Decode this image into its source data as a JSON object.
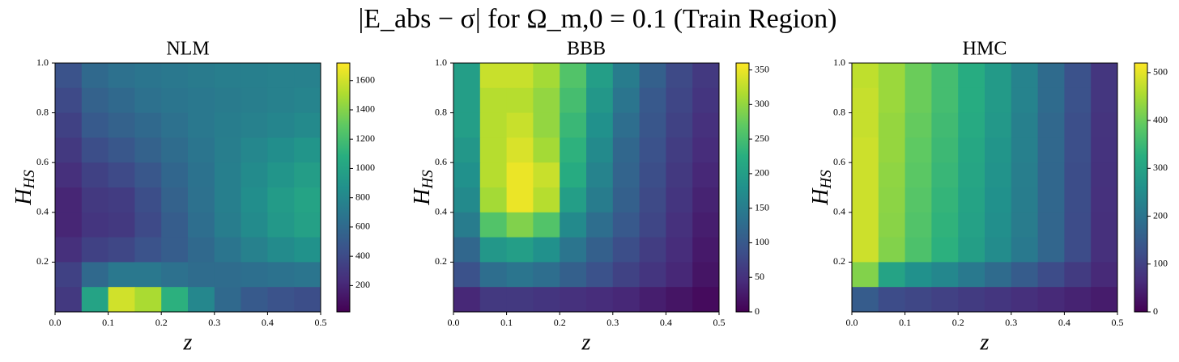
{
  "title": "|E_abs − σ| for Ω_m,0 = 0.1 (Train Region)",
  "chart_data": [
    {
      "type": "heatmap",
      "title": "NLM",
      "xlabel": "z",
      "ylabel": "H",
      "ylabel_sub": "HS",
      "colormap": "viridis",
      "xlim": [
        0,
        0.5
      ],
      "ylim": [
        0,
        1
      ],
      "xticks": [
        {
          "value": 0,
          "label": "0.0"
        },
        0.1,
        0.2,
        0.3,
        0.4,
        0.5
      ],
      "yticks": [
        0.2,
        0.4,
        0.6,
        0.8,
        {
          "value": 1,
          "label": "1.0"
        }
      ],
      "clim": [
        20,
        1720
      ],
      "cticks": [
        200,
        400,
        600,
        800,
        1000,
        1200,
        1400,
        1600
      ],
      "x": [
        0.025,
        0.075,
        0.125,
        0.175,
        0.225,
        0.275,
        0.325,
        0.375,
        0.425,
        0.475
      ],
      "y": [
        0.95,
        0.85,
        0.75,
        0.65,
        0.55,
        0.45,
        0.35,
        0.25,
        0.15,
        0.05
      ],
      "values": [
        [
          450,
          600,
          650,
          680,
          700,
          720,
          740,
          750,
          760,
          760
        ],
        [
          400,
          550,
          600,
          650,
          680,
          700,
          720,
          740,
          760,
          780
        ],
        [
          350,
          500,
          550,
          600,
          650,
          700,
          730,
          760,
          790,
          820
        ],
        [
          300,
          420,
          480,
          550,
          620,
          680,
          740,
          800,
          850,
          900
        ],
        [
          250,
          350,
          400,
          480,
          580,
          660,
          750,
          830,
          900,
          960
        ],
        [
          200,
          300,
          320,
          420,
          550,
          650,
          750,
          850,
          940,
          1000
        ],
        [
          200,
          280,
          300,
          400,
          520,
          630,
          730,
          830,
          920,
          980
        ],
        [
          250,
          350,
          380,
          450,
          520,
          600,
          680,
          760,
          830,
          880
        ],
        [
          350,
          600,
          700,
          700,
          650,
          620,
          620,
          640,
          660,
          680
        ],
        [
          300,
          1000,
          1600,
          1500,
          1100,
          800,
          600,
          500,
          450,
          420
        ]
      ]
    },
    {
      "type": "heatmap",
      "title": "BBB",
      "xlabel": "z",
      "ylabel": "H",
      "ylabel_sub": "HS",
      "colormap": "viridis",
      "xlim": [
        0,
        0.5
      ],
      "ylim": [
        0,
        1
      ],
      "xticks": [
        {
          "value": 0,
          "label": "0.0"
        },
        0.1,
        0.2,
        0.3,
        0.4,
        0.5
      ],
      "yticks": [
        0.2,
        0.4,
        0.6,
        0.8,
        {
          "value": 1,
          "label": "1.0"
        }
      ],
      "clim": [
        0,
        360
      ],
      "cticks": [
        0,
        50,
        100,
        150,
        200,
        250,
        300,
        350
      ],
      "x": [
        0.025,
        0.075,
        0.125,
        0.175,
        0.225,
        0.275,
        0.325,
        0.375,
        0.425,
        0.475
      ],
      "y": [
        0.95,
        0.85,
        0.75,
        0.65,
        0.55,
        0.45,
        0.35,
        0.25,
        0.15,
        0.05
      ],
      "values": [
        [
          200,
          330,
          330,
          310,
          260,
          200,
          150,
          110,
          80,
          60
        ],
        [
          200,
          320,
          320,
          300,
          250,
          190,
          140,
          100,
          75,
          55
        ],
        [
          200,
          320,
          330,
          300,
          240,
          180,
          130,
          95,
          70,
          50
        ],
        [
          190,
          320,
          340,
          310,
          230,
          170,
          120,
          90,
          65,
          45
        ],
        [
          180,
          320,
          350,
          330,
          220,
          160,
          115,
          85,
          60,
          40
        ],
        [
          170,
          310,
          350,
          320,
          200,
          150,
          110,
          80,
          55,
          35
        ],
        [
          150,
          260,
          290,
          260,
          170,
          130,
          100,
          75,
          50,
          30
        ],
        [
          120,
          190,
          200,
          180,
          140,
          110,
          85,
          65,
          45,
          25
        ],
        [
          90,
          130,
          140,
          130,
          110,
          90,
          70,
          55,
          40,
          20
        ],
        [
          40,
          60,
          60,
          55,
          50,
          45,
          40,
          30,
          20,
          10
        ]
      ]
    },
    {
      "type": "heatmap",
      "title": "HMC",
      "xlabel": "z",
      "ylabel": "H",
      "ylabel_sub": "HS",
      "colormap": "viridis",
      "xlim": [
        0,
        0.5
      ],
      "ylim": [
        0,
        1
      ],
      "xticks": [
        {
          "value": 0,
          "label": "0.0"
        },
        0.1,
        0.2,
        0.3,
        0.4,
        0.5
      ],
      "yticks": [
        0.2,
        0.4,
        0.6,
        0.8,
        {
          "value": 1,
          "label": "1.0"
        }
      ],
      "clim": [
        0,
        520
      ],
      "cticks": [
        0,
        100,
        200,
        300,
        400,
        500
      ],
      "x": [
        0.025,
        0.075,
        0.125,
        0.175,
        0.225,
        0.275,
        0.325,
        0.375,
        0.425,
        0.475
      ],
      "y": [
        0.95,
        0.85,
        0.75,
        0.65,
        0.55,
        0.45,
        0.35,
        0.25,
        0.15,
        0.05
      ],
      "values": [
        [
          470,
          440,
          400,
          360,
          320,
          280,
          230,
          180,
          130,
          80
        ],
        [
          475,
          440,
          400,
          360,
          320,
          280,
          230,
          180,
          130,
          80
        ],
        [
          475,
          435,
          395,
          355,
          315,
          275,
          225,
          175,
          125,
          78
        ],
        [
          480,
          435,
          390,
          350,
          310,
          270,
          225,
          175,
          125,
          76
        ],
        [
          480,
          430,
          385,
          345,
          305,
          265,
          220,
          172,
          122,
          74
        ],
        [
          480,
          428,
          380,
          340,
          300,
          260,
          218,
          172,
          122,
          72
        ],
        [
          480,
          425,
          375,
          335,
          295,
          255,
          215,
          170,
          120,
          70
        ],
        [
          480,
          420,
          370,
          330,
          290,
          250,
          210,
          170,
          120,
          70
        ],
        [
          420,
          300,
          260,
          240,
          210,
          180,
          150,
          120,
          90,
          60
        ],
        [
          150,
          120,
          110,
          100,
          90,
          80,
          70,
          60,
          50,
          40
        ]
      ]
    }
  ]
}
